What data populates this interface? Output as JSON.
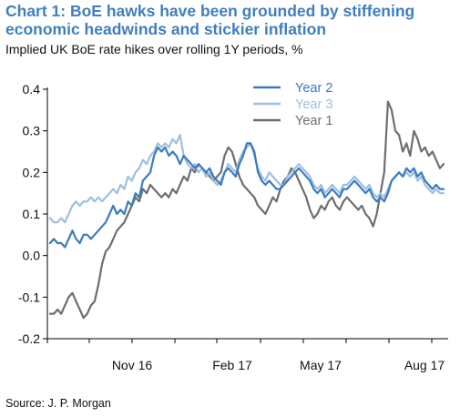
{
  "title": "Chart 1: BoE hawks have been grounded by stiffening economic headwinds and stickier inflation",
  "subtitle": "Implied UK BoE rate hikes over rolling 1Y periods, %",
  "source": "Source: J. P. Morgan",
  "chart_data": {
    "type": "line",
    "ylim": [
      -0.2,
      0.4
    ],
    "yticks": [
      "0.4",
      "0.3",
      "0.2",
      "0.1",
      "0.0",
      "-0.1",
      "-0.2"
    ],
    "xticks": [
      "Nov 16",
      "Feb 17",
      "May 17",
      "Aug 17"
    ],
    "legend_position": "top-center",
    "grid": false,
    "series": [
      {
        "name": "Year 2",
        "color": "#3a7cc0",
        "values": [
          0.03,
          0.04,
          0.03,
          0.03,
          0.02,
          0.04,
          0.06,
          0.04,
          0.03,
          0.05,
          0.05,
          0.04,
          0.05,
          0.06,
          0.07,
          0.08,
          0.1,
          0.12,
          0.1,
          0.11,
          0.1,
          0.13,
          0.12,
          0.15,
          0.14,
          0.18,
          0.19,
          0.2,
          0.24,
          0.26,
          0.25,
          0.26,
          0.24,
          0.25,
          0.24,
          0.22,
          0.24,
          0.23,
          0.22,
          0.21,
          0.22,
          0.21,
          0.2,
          0.21,
          0.19,
          0.18,
          0.17,
          0.2,
          0.21,
          0.2,
          0.19,
          0.22,
          0.24,
          0.27,
          0.27,
          0.25,
          0.2,
          0.18,
          0.17,
          0.18,
          0.17,
          0.16,
          0.16,
          0.17,
          0.18,
          0.19,
          0.2,
          0.21,
          0.2,
          0.19,
          0.18,
          0.16,
          0.15,
          0.16,
          0.14,
          0.15,
          0.16,
          0.15,
          0.14,
          0.16,
          0.16,
          0.17,
          0.18,
          0.17,
          0.16,
          0.15,
          0.16,
          0.14,
          0.13,
          0.14,
          0.13,
          0.15,
          0.18,
          0.19,
          0.2,
          0.19,
          0.21,
          0.2,
          0.21,
          0.19,
          0.2,
          0.18,
          0.17,
          0.16,
          0.17,
          0.16,
          0.16
        ]
      },
      {
        "name": "Year 3",
        "color": "#9fbfdf",
        "values": [
          0.09,
          0.08,
          0.08,
          0.09,
          0.08,
          0.1,
          0.12,
          0.13,
          0.12,
          0.13,
          0.13,
          0.14,
          0.13,
          0.14,
          0.13,
          0.14,
          0.15,
          0.16,
          0.15,
          0.17,
          0.16,
          0.19,
          0.18,
          0.2,
          0.21,
          0.23,
          0.22,
          0.24,
          0.25,
          0.27,
          0.26,
          0.27,
          0.26,
          0.28,
          0.27,
          0.29,
          0.24,
          0.22,
          0.21,
          0.22,
          0.2,
          0.21,
          0.19,
          0.2,
          0.18,
          0.17,
          0.18,
          0.2,
          0.22,
          0.21,
          0.2,
          0.23,
          0.25,
          0.26,
          0.27,
          0.24,
          0.21,
          0.19,
          0.18,
          0.2,
          0.19,
          0.18,
          0.17,
          0.17,
          0.19,
          0.2,
          0.21,
          0.22,
          0.21,
          0.2,
          0.19,
          0.17,
          0.16,
          0.17,
          0.15,
          0.16,
          0.17,
          0.16,
          0.15,
          0.17,
          0.17,
          0.18,
          0.19,
          0.18,
          0.17,
          0.16,
          0.17,
          0.15,
          0.14,
          0.15,
          0.14,
          0.16,
          0.18,
          0.19,
          0.2,
          0.19,
          0.2,
          0.19,
          0.2,
          0.18,
          0.19,
          0.17,
          0.16,
          0.15,
          0.16,
          0.15,
          0.15
        ]
      },
      {
        "name": "Year 1",
        "color": "#6e6e6e",
        "values": [
          -0.14,
          -0.14,
          -0.13,
          -0.14,
          -0.12,
          -0.1,
          -0.09,
          -0.11,
          -0.13,
          -0.15,
          -0.14,
          -0.12,
          -0.11,
          -0.07,
          -0.02,
          0.01,
          0.02,
          0.04,
          0.06,
          0.07,
          0.08,
          0.1,
          0.12,
          0.14,
          0.13,
          0.16,
          0.15,
          0.17,
          0.16,
          0.15,
          0.14,
          0.15,
          0.14,
          0.16,
          0.15,
          0.17,
          0.19,
          0.18,
          0.21,
          0.2,
          0.22,
          0.21,
          0.2,
          0.19,
          0.18,
          0.19,
          0.2,
          0.24,
          0.26,
          0.25,
          0.22,
          0.19,
          0.17,
          0.16,
          0.15,
          0.14,
          0.12,
          0.11,
          0.1,
          0.12,
          0.14,
          0.13,
          0.16,
          0.18,
          0.19,
          0.21,
          0.2,
          0.18,
          0.16,
          0.14,
          0.11,
          0.09,
          0.1,
          0.12,
          0.11,
          0.13,
          0.14,
          0.12,
          0.11,
          0.13,
          0.14,
          0.13,
          0.12,
          0.11,
          0.12,
          0.1,
          0.09,
          0.07,
          0.1,
          0.15,
          0.2,
          0.37,
          0.35,
          0.3,
          0.29,
          0.25,
          0.27,
          0.24,
          0.3,
          0.28,
          0.25,
          0.26,
          0.24,
          0.25,
          0.23,
          0.21,
          0.22
        ]
      }
    ]
  }
}
